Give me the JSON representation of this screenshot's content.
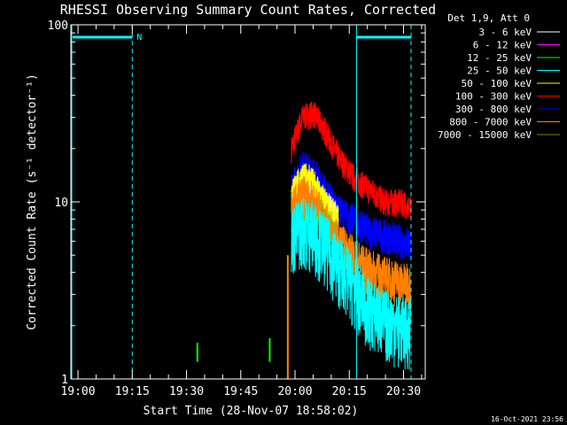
{
  "chart_data": {
    "type": "line",
    "title": "RHESSI Observing Summary Count Rates, Corrected",
    "ylabel": "Corrected Count Rate (s⁻¹ detector⁻¹)",
    "xlabel": "Start Time (28-Nov-07 18:58:02)",
    "footer": "16-Oct-2021 23:56",
    "yscale": "log",
    "ylim": [
      1,
      100
    ],
    "xlim_minutes": [
      18.97,
      20.6
    ],
    "y_ticks": [
      {
        "value": 1,
        "label": "1"
      },
      {
        "value": 10,
        "label": "10"
      },
      {
        "value": 100,
        "label": "100"
      }
    ],
    "x_ticks": [
      {
        "value": "19:00",
        "label": "19:00"
      },
      {
        "value": "19:15",
        "label": "19:15"
      },
      {
        "value": "19:30",
        "label": "19:30"
      },
      {
        "value": "19:45",
        "label": "19:45"
      },
      {
        "value": "20:00",
        "label": "20:00"
      },
      {
        "value": "20:15",
        "label": "20:15"
      },
      {
        "value": "20:30",
        "label": "20:30"
      }
    ],
    "legend": {
      "header": "Det 1,9, Att 0",
      "position": "top-right",
      "items": [
        {
          "label": "3 - 6 keV",
          "color": "#ffffff"
        },
        {
          "label": "6 - 12 keV",
          "color": "#ff00ff"
        },
        {
          "label": "12 - 25 keV",
          "color": "#00ff00"
        },
        {
          "label": "25 - 50 keV",
          "color": "#00ffff"
        },
        {
          "label": "50 - 100 keV",
          "color": "#ffff00"
        },
        {
          "label": "100 - 300 keV",
          "color": "#ff0000"
        },
        {
          "label": "300 - 800 keV",
          "color": "#0000ff"
        },
        {
          "label": "800 - 7000 keV",
          "color": "#ff8000"
        },
        {
          "label": "7000 - 15000 keV",
          "color": "#808000"
        }
      ]
    },
    "night_marker_label": "N",
    "series": [
      {
        "name": "100 - 300 keV",
        "color": "#ff0000",
        "base": [
          [
            "19:59",
            20
          ],
          [
            "20:02",
            30
          ],
          [
            "20:05",
            32
          ],
          [
            "20:08",
            26
          ],
          [
            "20:12",
            18
          ],
          [
            "20:16",
            14
          ],
          [
            "20:20",
            12
          ],
          [
            "20:25",
            10
          ],
          [
            "20:30",
            10
          ],
          [
            "20:32",
            9
          ]
        ],
        "noise": 0.18
      },
      {
        "name": "300 - 800 keV",
        "color": "#0000ff",
        "base": [
          [
            "19:59",
            12
          ],
          [
            "20:02",
            16
          ],
          [
            "20:05",
            15
          ],
          [
            "20:08",
            12
          ],
          [
            "20:12",
            9
          ],
          [
            "20:16",
            8
          ],
          [
            "20:20",
            7
          ],
          [
            "20:25",
            6.5
          ],
          [
            "20:30",
            6
          ],
          [
            "20:32",
            6
          ]
        ],
        "noise": 0.22
      },
      {
        "name": "3 - 6 keV",
        "color": "#ffffff",
        "base": [
          [
            "19:59",
            10
          ],
          [
            "20:02",
            13
          ],
          [
            "20:05",
            12
          ],
          [
            "20:08",
            10
          ],
          [
            "20:12",
            8
          ]
        ],
        "noise": 0.2
      },
      {
        "name": "50 - 100 keV",
        "color": "#ffff00",
        "base": [
          [
            "19:59",
            11
          ],
          [
            "20:02",
            14
          ],
          [
            "20:05",
            13
          ],
          [
            "20:08",
            10
          ],
          [
            "20:12",
            8
          ]
        ],
        "noise": 0.22
      },
      {
        "name": "12 - 25 keV",
        "color": "#00ff00",
        "base": [
          [
            "19:59",
            8
          ],
          [
            "20:02",
            9.5
          ],
          [
            "20:05",
            9
          ],
          [
            "20:08",
            8
          ],
          [
            "20:12",
            6
          ]
        ],
        "noise": 0.22
      },
      {
        "name": "800 - 7000 keV",
        "color": "#ff8000",
        "base": [
          [
            "19:59",
            9
          ],
          [
            "20:02",
            11
          ],
          [
            "20:05",
            10
          ],
          [
            "20:08",
            8
          ],
          [
            "20:12",
            6
          ],
          [
            "20:16",
            5
          ],
          [
            "20:20",
            4.2
          ],
          [
            "20:25",
            3.8
          ],
          [
            "20:30",
            3.5
          ],
          [
            "20:32",
            3.4
          ]
        ],
        "noise": 0.3
      },
      {
        "name": "25 - 50 keV",
        "color": "#00ffff",
        "base": [
          [
            "19:59",
            6.5
          ],
          [
            "20:02",
            7.5
          ],
          [
            "20:05",
            7
          ],
          [
            "20:08",
            6
          ],
          [
            "20:12",
            4.5
          ],
          [
            "20:16",
            3.5
          ],
          [
            "20:20",
            2.6
          ],
          [
            "20:25",
            2.2
          ],
          [
            "20:30",
            2
          ],
          [
            "20:32",
            2
          ]
        ],
        "noise": 0.45
      }
    ]
  }
}
